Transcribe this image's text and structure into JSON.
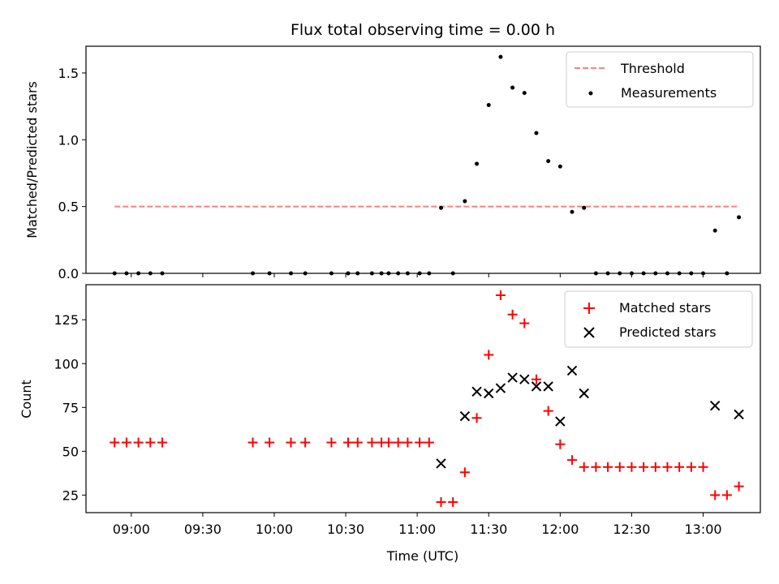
{
  "chart_data": [
    {
      "type": "scatter",
      "title": "Flux total observing time = 0.00 h",
      "xlabel": "",
      "ylabel": "Matched/Predicted stars",
      "ylim": [
        0,
        1.7
      ],
      "yticks": [
        "0.0",
        "0.5",
        "1.0",
        "1.5"
      ],
      "legend": "top-right",
      "threshold": {
        "name": "Threshold",
        "value": 0.5,
        "x_start": "08:53",
        "x_end": "13:15",
        "color": "#ff7f7f",
        "style": "dashed"
      },
      "series": [
        {
          "name": "Measurements",
          "marker": "dot",
          "color": "#000000",
          "points": [
            [
              "08:53",
              0
            ],
            [
              "08:58",
              0
            ],
            [
              "09:03",
              0
            ],
            [
              "09:08",
              0
            ],
            [
              "09:13",
              0
            ],
            [
              "09:51",
              0
            ],
            [
              "09:58",
              0
            ],
            [
              "10:07",
              0
            ],
            [
              "10:13",
              0
            ],
            [
              "10:24",
              0
            ],
            [
              "10:31",
              0
            ],
            [
              "10:35",
              0
            ],
            [
              "10:41",
              0
            ],
            [
              "10:45",
              0
            ],
            [
              "10:48",
              0
            ],
            [
              "10:52",
              0
            ],
            [
              "10:56",
              0
            ],
            [
              "11:01",
              0
            ],
            [
              "11:05",
              0
            ],
            [
              "11:10",
              0.49
            ],
            [
              "11:15",
              0
            ],
            [
              "11:20",
              0.54
            ],
            [
              "11:25",
              0.82
            ],
            [
              "11:30",
              1.26
            ],
            [
              "11:35",
              1.62
            ],
            [
              "11:40",
              1.39
            ],
            [
              "11:45",
              1.35
            ],
            [
              "11:50",
              1.05
            ],
            [
              "11:55",
              0.84
            ],
            [
              "12:00",
              0.8
            ],
            [
              "12:05",
              0.46
            ],
            [
              "12:10",
              0.49
            ],
            [
              "12:15",
              0
            ],
            [
              "12:20",
              0
            ],
            [
              "12:25",
              0
            ],
            [
              "12:30",
              0
            ],
            [
              "12:35",
              0
            ],
            [
              "12:40",
              0
            ],
            [
              "12:45",
              0
            ],
            [
              "12:50",
              0
            ],
            [
              "12:55",
              0
            ],
            [
              "13:00",
              0
            ],
            [
              "13:05",
              0.32
            ],
            [
              "13:10",
              0
            ],
            [
              "13:15",
              0.42
            ]
          ]
        }
      ]
    },
    {
      "type": "scatter",
      "title": "",
      "xlabel": "Time (UTC)",
      "ylabel": "Count",
      "ylim": [
        15,
        145
      ],
      "yticks": [
        "25",
        "50",
        "75",
        "100",
        "125"
      ],
      "xlim": [
        "08:41",
        "13:24"
      ],
      "xticks": [
        "09:00",
        "09:30",
        "10:00",
        "10:30",
        "11:00",
        "11:30",
        "12:00",
        "12:30",
        "13:00"
      ],
      "legend": "top-right",
      "series": [
        {
          "name": "Matched stars",
          "marker": "plus",
          "color": "#ff0000",
          "points": [
            [
              "08:53",
              55
            ],
            [
              "08:58",
              55
            ],
            [
              "09:03",
              55
            ],
            [
              "09:08",
              55
            ],
            [
              "09:13",
              55
            ],
            [
              "09:51",
              55
            ],
            [
              "09:58",
              55
            ],
            [
              "10:07",
              55
            ],
            [
              "10:13",
              55
            ],
            [
              "10:24",
              55
            ],
            [
              "10:31",
              55
            ],
            [
              "10:35",
              55
            ],
            [
              "10:41",
              55
            ],
            [
              "10:45",
              55
            ],
            [
              "10:48",
              55
            ],
            [
              "10:52",
              55
            ],
            [
              "10:56",
              55
            ],
            [
              "11:01",
              55
            ],
            [
              "11:05",
              55
            ],
            [
              "11:10",
              21
            ],
            [
              "11:15",
              21
            ],
            [
              "11:20",
              38
            ],
            [
              "11:25",
              69
            ],
            [
              "11:30",
              105
            ],
            [
              "11:35",
              139
            ],
            [
              "11:40",
              128
            ],
            [
              "11:45",
              123
            ],
            [
              "11:50",
              91
            ],
            [
              "11:55",
              73
            ],
            [
              "12:00",
              54
            ],
            [
              "12:05",
              45
            ],
            [
              "12:10",
              41
            ],
            [
              "12:15",
              41
            ],
            [
              "12:20",
              41
            ],
            [
              "12:25",
              41
            ],
            [
              "12:30",
              41
            ],
            [
              "12:35",
              41
            ],
            [
              "12:40",
              41
            ],
            [
              "12:45",
              41
            ],
            [
              "12:50",
              41
            ],
            [
              "12:55",
              41
            ],
            [
              "13:00",
              41
            ],
            [
              "13:05",
              25
            ],
            [
              "13:10",
              25
            ],
            [
              "13:15",
              30
            ]
          ]
        },
        {
          "name": "Predicted stars",
          "marker": "x",
          "color": "#000000",
          "points": [
            [
              "11:10",
              43
            ],
            [
              "11:20",
              70
            ],
            [
              "11:25",
              84
            ],
            [
              "11:30",
              83
            ],
            [
              "11:35",
              86
            ],
            [
              "11:40",
              92
            ],
            [
              "11:45",
              91
            ],
            [
              "11:50",
              87
            ],
            [
              "11:55",
              87
            ],
            [
              "12:00",
              67
            ],
            [
              "12:05",
              96
            ],
            [
              "12:10",
              83
            ],
            [
              "13:05",
              76
            ],
            [
              "13:15",
              71
            ]
          ]
        }
      ]
    }
  ]
}
